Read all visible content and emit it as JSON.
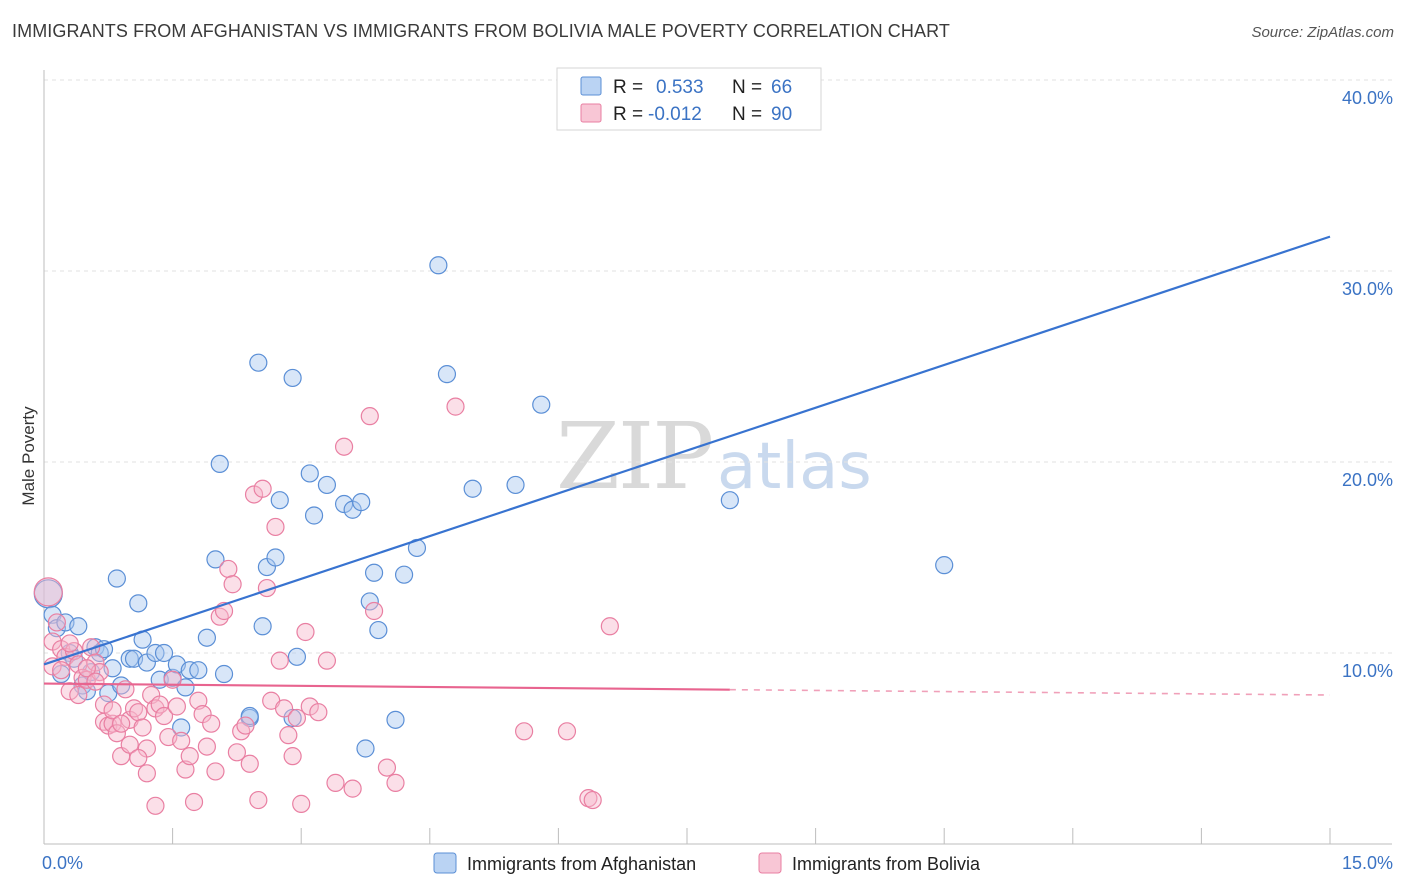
{
  "header": {
    "title": "IMMIGRANTS FROM AFGHANISTAN VS IMMIGRANTS FROM BOLIVIA MALE POVERTY CORRELATION CHART",
    "source": "Source: ZipAtlas.com"
  },
  "watermark": {
    "zip": "ZIP",
    "atlas": "atlas"
  },
  "legend": {
    "rows": [
      {
        "r_label": "R =",
        "r_value": "0.533",
        "n_label": "N =",
        "n_value": "66",
        "color": "#a9c8f0"
      },
      {
        "r_label": "R =",
        "r_value": "-0.012",
        "n_label": "N =",
        "n_value": "90",
        "color": "#f6b8cb"
      }
    ]
  },
  "chart_data": {
    "type": "scatter",
    "title": "IMMIGRANTS FROM AFGHANISTAN VS IMMIGRANTS FROM BOLIVIA MALE POVERTY CORRELATION CHART",
    "xlabel": "",
    "ylabel": "Male Poverty",
    "xlim": [
      0,
      15
    ],
    "ylim": [
      0,
      42
    ],
    "x_tick_labels": {
      "left": "0.0%",
      "right": "15.0%"
    },
    "y_ticks": [
      {
        "value": 10,
        "label": "10.0%"
      },
      {
        "value": 20,
        "label": "20.0%"
      },
      {
        "value": 30,
        "label": "30.0%"
      },
      {
        "value": 40,
        "label": "40.0%"
      }
    ],
    "grid": "horizontal dashed",
    "series": [
      {
        "name": "Immigrants from Afghanistan",
        "color": "#5b8fd6",
        "fill": "#a9c8f0",
        "trend": {
          "x0": 0.0,
          "y0": 9.4,
          "x1": 15.0,
          "y1": 31.8,
          "dashed_from": null
        },
        "points": [
          [
            0.05,
            13.1
          ],
          [
            0.1,
            12.0
          ],
          [
            0.15,
            11.3
          ],
          [
            0.2,
            8.9
          ],
          [
            0.25,
            11.6
          ],
          [
            0.3,
            10.0
          ],
          [
            0.35,
            9.7
          ],
          [
            0.4,
            11.4
          ],
          [
            0.45,
            8.3
          ],
          [
            0.5,
            8.0
          ],
          [
            0.55,
            9.0
          ],
          [
            0.6,
            10.3
          ],
          [
            0.65,
            10.0
          ],
          [
            0.7,
            10.2
          ],
          [
            0.75,
            7.9
          ],
          [
            0.8,
            9.2
          ],
          [
            0.85,
            13.9
          ],
          [
            0.9,
            8.3
          ],
          [
            1.0,
            9.7
          ],
          [
            1.05,
            9.7
          ],
          [
            1.1,
            12.6
          ],
          [
            1.15,
            10.7
          ],
          [
            1.2,
            9.5
          ],
          [
            1.3,
            10.0
          ],
          [
            1.35,
            8.6
          ],
          [
            1.4,
            10.0
          ],
          [
            1.5,
            8.7
          ],
          [
            1.55,
            9.4
          ],
          [
            1.6,
            6.1
          ],
          [
            1.65,
            8.2
          ],
          [
            1.7,
            9.1
          ],
          [
            1.8,
            9.1
          ],
          [
            1.9,
            10.8
          ],
          [
            2.0,
            14.9
          ],
          [
            2.05,
            19.9
          ],
          [
            2.1,
            8.9
          ],
          [
            2.4,
            6.6
          ],
          [
            2.5,
            25.2
          ],
          [
            2.55,
            11.4
          ],
          [
            2.6,
            14.5
          ],
          [
            2.7,
            15.0
          ],
          [
            2.75,
            18.0
          ],
          [
            2.9,
            24.4
          ],
          [
            2.95,
            9.8
          ],
          [
            3.1,
            19.4
          ],
          [
            3.15,
            17.2
          ],
          [
            3.3,
            18.8
          ],
          [
            3.5,
            17.8
          ],
          [
            3.6,
            17.5
          ],
          [
            3.7,
            17.9
          ],
          [
            3.75,
            5.0
          ],
          [
            3.8,
            12.7
          ],
          [
            3.85,
            14.2
          ],
          [
            3.9,
            11.2
          ],
          [
            4.1,
            6.5
          ],
          [
            4.2,
            14.1
          ],
          [
            4.35,
            15.5
          ],
          [
            4.6,
            30.3
          ],
          [
            4.7,
            24.6
          ],
          [
            5.0,
            18.6
          ],
          [
            5.5,
            18.8
          ],
          [
            5.8,
            23.0
          ],
          [
            8.0,
            18.0
          ],
          [
            10.5,
            14.6
          ],
          [
            2.4,
            6.7
          ],
          [
            2.9,
            6.6
          ]
        ]
      },
      {
        "name": "Immigrants from Bolivia",
        "color": "#e97fa2",
        "fill": "#f6b8cb",
        "trend": {
          "x0": 0.0,
          "y0": 8.4,
          "x1": 15.0,
          "y1": 7.8,
          "dashed_from": 8.0
        },
        "points": [
          [
            0.05,
            13.2
          ],
          [
            0.1,
            10.6
          ],
          [
            0.15,
            11.6
          ],
          [
            0.2,
            10.2
          ],
          [
            0.25,
            9.8
          ],
          [
            0.3,
            8.0
          ],
          [
            0.35,
            10.1
          ],
          [
            0.4,
            9.4
          ],
          [
            0.45,
            8.7
          ],
          [
            0.5,
            8.6
          ],
          [
            0.55,
            10.3
          ],
          [
            0.6,
            9.5
          ],
          [
            0.65,
            9.0
          ],
          [
            0.7,
            6.4
          ],
          [
            0.75,
            6.2
          ],
          [
            0.8,
            6.3
          ],
          [
            0.85,
            5.8
          ],
          [
            0.9,
            4.6
          ],
          [
            0.95,
            8.1
          ],
          [
            1.0,
            6.5
          ],
          [
            1.05,
            7.1
          ],
          [
            1.1,
            6.9
          ],
          [
            1.15,
            6.1
          ],
          [
            1.2,
            5.0
          ],
          [
            1.25,
            7.8
          ],
          [
            1.3,
            7.1
          ],
          [
            1.35,
            7.3
          ],
          [
            1.4,
            6.7
          ],
          [
            1.45,
            5.6
          ],
          [
            1.5,
            8.6
          ],
          [
            1.55,
            7.2
          ],
          [
            1.6,
            5.4
          ],
          [
            1.65,
            3.9
          ],
          [
            1.7,
            4.6
          ],
          [
            1.75,
            2.2
          ],
          [
            1.8,
            7.5
          ],
          [
            1.85,
            6.8
          ],
          [
            1.9,
            5.1
          ],
          [
            1.95,
            6.3
          ],
          [
            2.0,
            3.8
          ],
          [
            2.05,
            11.9
          ],
          [
            2.1,
            12.2
          ],
          [
            2.15,
            14.4
          ],
          [
            2.2,
            13.6
          ],
          [
            2.25,
            4.8
          ],
          [
            2.3,
            5.9
          ],
          [
            2.35,
            6.2
          ],
          [
            2.4,
            4.2
          ],
          [
            2.45,
            18.3
          ],
          [
            2.5,
            2.3
          ],
          [
            2.55,
            18.6
          ],
          [
            2.6,
            13.4
          ],
          [
            2.65,
            7.5
          ],
          [
            2.7,
            16.6
          ],
          [
            2.75,
            9.6
          ],
          [
            2.8,
            7.1
          ],
          [
            2.85,
            5.7
          ],
          [
            2.9,
            4.6
          ],
          [
            2.95,
            6.6
          ],
          [
            3.0,
            2.1
          ],
          [
            3.05,
            11.1
          ],
          [
            3.1,
            7.2
          ],
          [
            3.2,
            6.9
          ],
          [
            3.3,
            9.6
          ],
          [
            3.4,
            3.2
          ],
          [
            3.5,
            20.8
          ],
          [
            3.6,
            2.9
          ],
          [
            3.8,
            22.4
          ],
          [
            3.85,
            12.2
          ],
          [
            4.0,
            4.0
          ],
          [
            4.1,
            3.2
          ],
          [
            4.8,
            22.9
          ],
          [
            5.6,
            5.9
          ],
          [
            6.1,
            5.9
          ],
          [
            6.35,
            2.4
          ],
          [
            6.4,
            2.3
          ],
          [
            6.6,
            11.4
          ],
          [
            0.1,
            9.3
          ],
          [
            0.2,
            9.1
          ],
          [
            0.3,
            10.5
          ],
          [
            0.4,
            7.8
          ],
          [
            0.5,
            9.2
          ],
          [
            0.6,
            8.5
          ],
          [
            0.7,
            7.3
          ],
          [
            0.8,
            7.0
          ],
          [
            0.9,
            6.3
          ],
          [
            1.0,
            5.2
          ],
          [
            1.1,
            4.5
          ],
          [
            1.2,
            3.7
          ],
          [
            1.3,
            2.0
          ]
        ]
      }
    ]
  },
  "bottom_legend": {
    "items": [
      {
        "label": "Immigrants from Afghanistan",
        "color": "#a9c8f0",
        "border": "#5b8fd6"
      },
      {
        "label": "Immigrants from Bolivia",
        "color": "#f6b8cb",
        "border": "#e97fa2"
      }
    ]
  }
}
